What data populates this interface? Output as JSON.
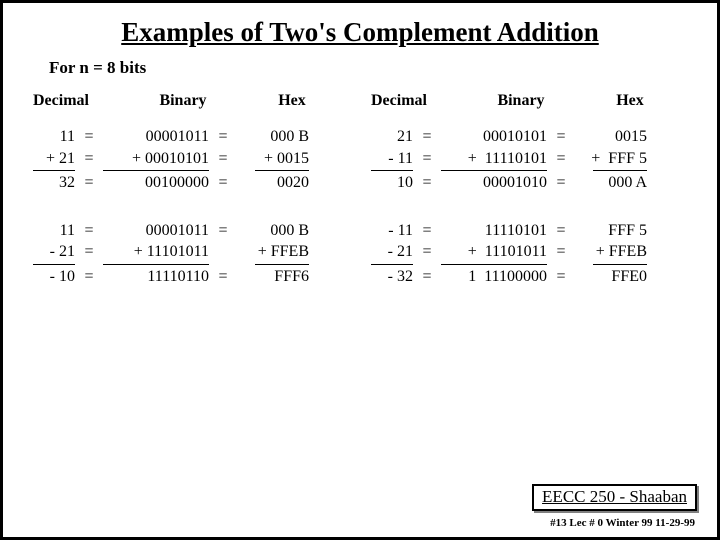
{
  "title": "Examples of Two's Complement Addition",
  "subtitle": "For  n = 8  bits",
  "headers": {
    "dec": "Decimal",
    "bin": "Binary",
    "hex": "Hex"
  },
  "left": {
    "b1": {
      "r1": {
        "dec": "11",
        "eq1": "=",
        "bin": "00001011",
        "eq2": "=",
        "hex": "000 B"
      },
      "r2": {
        "dec": "+ 21",
        "eq1": "=",
        "bin": "+ 00010101",
        "eq2": "=",
        "hex": "+ 0015"
      },
      "r3": {
        "dec": "32",
        "eq1": "=",
        "bin": "00100000",
        "eq2": "=",
        "hex": "0020"
      }
    },
    "b2": {
      "r1": {
        "dec": "11",
        "eq1": "=",
        "bin": "00001011",
        "eq2": "=",
        "hex": "000 B"
      },
      "r2": {
        "dec": "- 21",
        "eq1": "=",
        "bin": "+ 11101011",
        "eq2": "",
        "hex": "+ FFEB"
      },
      "r3": {
        "dec": "- 10",
        "eq1": "=",
        "bin": "11110110",
        "eq2": "=",
        "hex": "FFF6"
      }
    }
  },
  "right": {
    "b1": {
      "r1": {
        "dec": "21",
        "eq1": "=",
        "bin": "00010101",
        "eq2": "=",
        "hex": "0015"
      },
      "r2": {
        "dec": "- 11",
        "eq1": "=",
        "bin": "+  11110101",
        "eq2": "=",
        "hex": "+  FFF 5"
      },
      "r3": {
        "dec": "10",
        "eq1": "=",
        "bin": "00001010",
        "eq2": "=",
        "hex": "000 A"
      }
    },
    "b2": {
      "r1": {
        "dec": "- 11",
        "eq1": "=",
        "bin": "11110101",
        "eq2": "=",
        "hex": "FFF 5"
      },
      "r2": {
        "dec": "- 21",
        "eq1": "=",
        "bin": "+  11101011",
        "eq2": "=",
        "hex": "+ FFEB"
      },
      "r3": {
        "dec": "- 32",
        "eq1": "=",
        "bin": "1  11100000",
        "eq2": "=",
        "hex": "FFE0"
      }
    }
  },
  "footer": {
    "box": "EECC 250 - Shaaban",
    "small": "#13   Lec # 0   Winter 99  11-29-99"
  }
}
